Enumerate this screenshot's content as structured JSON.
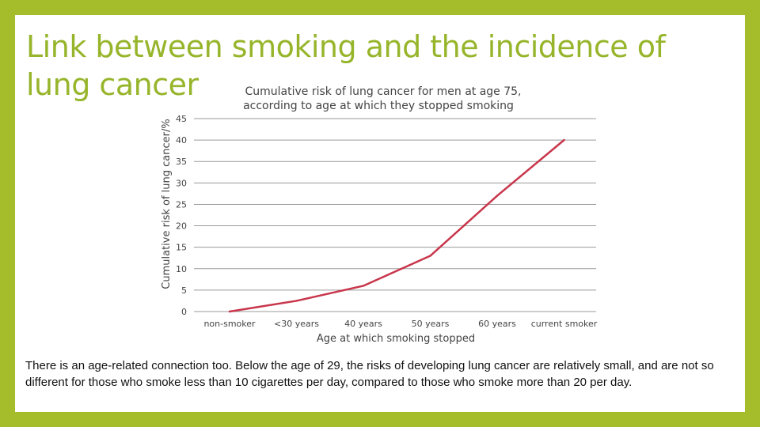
{
  "slide": {
    "title": "Link between smoking and the incidence of lung cancer",
    "body": "There is an age-related connection too. Below the age of 29, the risks of developing lung cancer are relatively small, and are not so different for those who smoke less than 10 cigarettes per day, compared to those who smoke more than 20 per day."
  },
  "colors": {
    "background": "#a5bd2a",
    "title": "#97b52b",
    "line": "#c8364b",
    "grid": "#9a9a9a"
  },
  "chart_data": {
    "type": "line",
    "title_lines": [
      "Cumulative risk of lung cancer for men at age 75,",
      "according to age at which they stopped smoking"
    ],
    "xlabel": "Age at which smoking stopped",
    "ylabel": "Cumulative risk of lung cancer/%",
    "categories": [
      "non-smoker",
      "<30 years",
      "40 years",
      "50 years",
      "60 years",
      "current smoker"
    ],
    "values": [
      0,
      2.5,
      6,
      13,
      27,
      40
    ],
    "ylim": [
      0,
      45
    ],
    "yticks": [
      0,
      5,
      10,
      15,
      20,
      25,
      30,
      35,
      40,
      45
    ],
    "grid": true
  }
}
